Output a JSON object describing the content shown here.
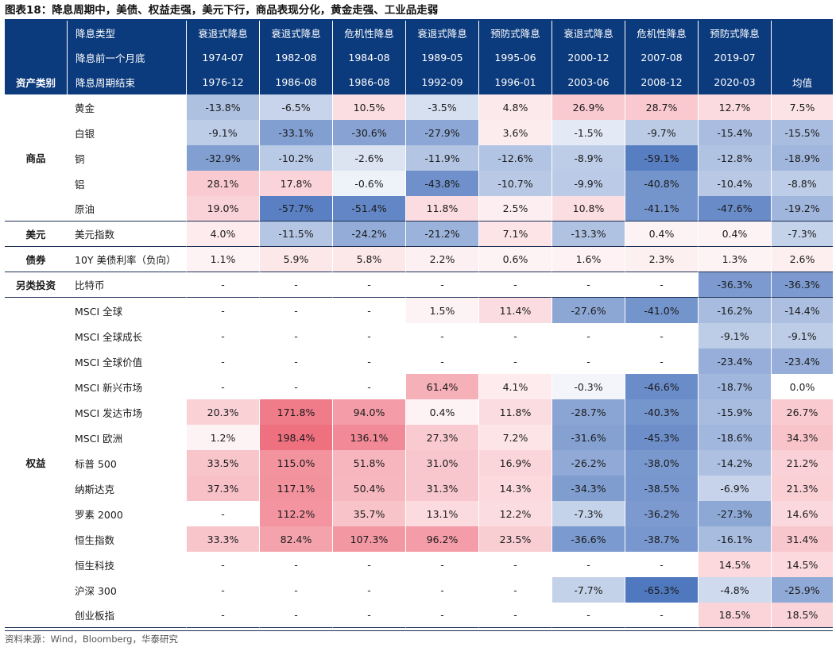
{
  "title": "图表18：降息周期中，美债、权益走强，美元下行，商品表现分化，黄金走强、工业品走弱",
  "source": "资料来源：Wind，Bloomberg，华泰研究",
  "header": {
    "row1_label": "降息类型",
    "row2_label": "降息前一个月底",
    "row3_label": "降息周期结束",
    "asset_class_label": "资产类别",
    "mean_label": "均值",
    "periods": [
      {
        "type": "衰退式降息",
        "start": "1974-07",
        "end": "1976-12"
      },
      {
        "type": "衰退式降息",
        "start": "1982-08",
        "end": "1986-08"
      },
      {
        "type": "危机性降息",
        "start": "1984-08",
        "end": "1986-08"
      },
      {
        "type": "衰退式降息",
        "start": "1989-05",
        "end": "1992-09"
      },
      {
        "type": "预防式降息",
        "start": "1995-06",
        "end": "1996-01"
      },
      {
        "type": "衰退式降息",
        "start": "2000-12",
        "end": "2003-06"
      },
      {
        "type": "危机性降息",
        "start": "2007-08",
        "end": "2008-12"
      },
      {
        "type": "预防式降息",
        "start": "2019-07",
        "end": "2020-03"
      }
    ]
  },
  "categories": [
    {
      "name": "商品",
      "rows": [
        {
          "asset": "黄金",
          "values": [
            "-13.8%",
            "-6.5%",
            "10.5%",
            "-3.5%",
            "4.8%",
            "26.9%",
            "28.7%",
            "12.7%"
          ],
          "mean": "7.5%"
        },
        {
          "asset": "白银",
          "values": [
            "-9.1%",
            "-33.1%",
            "-30.6%",
            "-27.9%",
            "3.6%",
            "-1.5%",
            "-9.7%",
            "-15.4%"
          ],
          "mean": "-15.5%"
        },
        {
          "asset": "铜",
          "values": [
            "-32.9%",
            "-10.2%",
            "-2.6%",
            "-11.9%",
            "-12.6%",
            "-8.9%",
            "-59.1%",
            "-12.8%"
          ],
          "mean": "-18.9%"
        },
        {
          "asset": "铝",
          "values": [
            "28.1%",
            "17.8%",
            "-0.6%",
            "-43.8%",
            "-10.7%",
            "-9.9%",
            "-40.8%",
            "-10.4%"
          ],
          "mean": "-8.8%"
        },
        {
          "asset": "原油",
          "values": [
            "19.0%",
            "-57.7%",
            "-51.4%",
            "11.8%",
            "2.5%",
            "10.8%",
            "-41.1%",
            "-47.6%"
          ],
          "mean": "-19.2%"
        }
      ]
    },
    {
      "name": "美元",
      "rows": [
        {
          "asset": "美元指数",
          "values": [
            "4.0%",
            "-11.5%",
            "-24.2%",
            "-21.2%",
            "7.1%",
            "-13.3%",
            "0.4%",
            "0.4%"
          ],
          "mean": "-7.3%"
        }
      ]
    },
    {
      "name": "债券",
      "rows": [
        {
          "asset": "10Y 美债利率（负向）",
          "values": [
            "1.1%",
            "5.9%",
            "5.8%",
            "2.2%",
            "0.6%",
            "1.6%",
            "2.3%",
            "1.3%"
          ],
          "mean": "2.6%"
        }
      ]
    },
    {
      "name": "另类投资",
      "rows": [
        {
          "asset": "比特币",
          "values": [
            "-",
            "-",
            "-",
            "-",
            "-",
            "-",
            "-",
            "-36.3%"
          ],
          "mean": "-36.3%"
        }
      ]
    },
    {
      "name": "权益",
      "rows": [
        {
          "asset": "MSCI 全球",
          "values": [
            "-",
            "-",
            "-",
            "1.5%",
            "11.4%",
            "-27.6%",
            "-41.0%",
            "-16.2%"
          ],
          "mean": "-14.4%"
        },
        {
          "asset": "MSCI 全球成长",
          "values": [
            "-",
            "-",
            "-",
            "-",
            "-",
            "-",
            "-",
            "-9.1%"
          ],
          "mean": "-9.1%"
        },
        {
          "asset": "MSCI 全球价值",
          "values": [
            "-",
            "-",
            "-",
            "-",
            "-",
            "-",
            "-",
            "-23.4%"
          ],
          "mean": "-23.4%"
        },
        {
          "asset": "MSCI 新兴市场",
          "values": [
            "-",
            "-",
            "-",
            "61.4%",
            "4.1%",
            "-0.3%",
            "-46.6%",
            "-18.7%"
          ],
          "mean": "0.0%"
        },
        {
          "asset": "MSCI 发达市场",
          "values": [
            "20.3%",
            "171.8%",
            "94.0%",
            "0.4%",
            "11.8%",
            "-28.7%",
            "-40.3%",
            "-15.9%"
          ],
          "mean": "26.7%"
        },
        {
          "asset": "MSCI 欧洲",
          "values": [
            "1.2%",
            "198.4%",
            "136.1%",
            "27.3%",
            "7.2%",
            "-31.6%",
            "-45.3%",
            "-18.6%"
          ],
          "mean": "34.3%"
        },
        {
          "asset": "标普 500",
          "values": [
            "33.5%",
            "115.0%",
            "51.8%",
            "31.0%",
            "16.9%",
            "-26.2%",
            "-38.0%",
            "-14.2%"
          ],
          "mean": "21.2%"
        },
        {
          "asset": "纳斯达克",
          "values": [
            "37.3%",
            "117.1%",
            "50.4%",
            "31.3%",
            "14.3%",
            "-34.3%",
            "-38.5%",
            "-6.9%"
          ],
          "mean": "21.3%"
        },
        {
          "asset": "罗素 2000",
          "values": [
            "-",
            "112.2%",
            "35.7%",
            "13.1%",
            "12.2%",
            "-7.3%",
            "-36.2%",
            "-27.3%"
          ],
          "mean": "14.6%"
        },
        {
          "asset": "恒生指数",
          "values": [
            "33.3%",
            "82.4%",
            "107.3%",
            "96.2%",
            "23.5%",
            "-36.6%",
            "-38.7%",
            "-16.1%"
          ],
          "mean": "31.4%"
        },
        {
          "asset": "恒生科技",
          "values": [
            "-",
            "-",
            "-",
            "-",
            "-",
            "-",
            "-",
            "14.5%"
          ],
          "mean": "14.5%"
        },
        {
          "asset": "沪深 300",
          "values": [
            "-",
            "-",
            "-",
            "-",
            "-",
            "-7.7%",
            "-65.3%",
            "-4.8%"
          ],
          "mean": "-25.9%"
        },
        {
          "asset": "创业板指",
          "values": [
            "-",
            "-",
            "-",
            "-",
            "-",
            "-",
            "-",
            "18.5%"
          ],
          "mean": "18.5%"
        }
      ]
    }
  ],
  "colors": {
    "header_bg": "#0b3a7d",
    "positive": "#e8394e",
    "negative": "#2f5fb3"
  }
}
